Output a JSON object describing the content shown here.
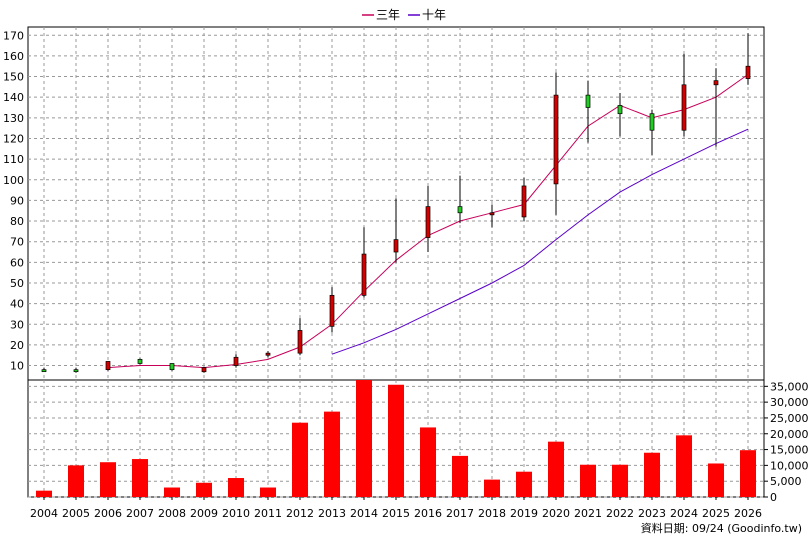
{
  "chart_data": {
    "type": "candlestick+bar",
    "legend": [
      {
        "label": "三年",
        "color": "#c8005a"
      },
      {
        "label": "十年",
        "color": "#5a00c8"
      }
    ],
    "years": [
      "2004",
      "2005",
      "2006",
      "2007",
      "2008",
      "2009",
      "2010",
      "2011",
      "2012",
      "2013",
      "2014",
      "2015",
      "2016",
      "2017",
      "2018",
      "2019",
      "2020",
      "2021",
      "2022",
      "2023",
      "2024",
      "2025",
      "2026"
    ],
    "price": {
      "ylim": [
        3,
        174
      ],
      "ticks": [
        10,
        20,
        30,
        40,
        50,
        60,
        70,
        80,
        90,
        100,
        110,
        120,
        130,
        140,
        150,
        160,
        170
      ],
      "candles": [
        {
          "open": 8,
          "close": 7.5,
          "high": 9,
          "low": 7,
          "color": "green"
        },
        {
          "open": 8,
          "close": 7.5,
          "high": 9,
          "low": 6.5,
          "color": "green"
        },
        {
          "open": 8,
          "close": 12,
          "high": 12,
          "low": 7.5,
          "color": "red"
        },
        {
          "open": 11,
          "close": 13,
          "high": 13.5,
          "low": 10.5,
          "color": "green"
        },
        {
          "open": 11,
          "close": 8,
          "high": 11,
          "low": 7.5,
          "color": "green"
        },
        {
          "open": 7,
          "close": 9,
          "high": 9.5,
          "low": 6.5,
          "color": "red"
        },
        {
          "open": 10,
          "close": 14,
          "high": 15.5,
          "low": 9,
          "color": "red"
        },
        {
          "open": 15,
          "close": 16,
          "high": 17,
          "low": 14,
          "color": "red"
        },
        {
          "open": 16,
          "close": 27,
          "high": 33,
          "low": 15,
          "color": "red"
        },
        {
          "open": 29,
          "close": 44,
          "high": 48,
          "low": 26,
          "color": "red"
        },
        {
          "open": 44,
          "close": 64,
          "high": 77,
          "low": 43,
          "color": "red"
        },
        {
          "open": 65,
          "close": 71,
          "high": 91,
          "low": 60,
          "color": "red"
        },
        {
          "open": 72,
          "close": 87,
          "high": 97,
          "low": 65,
          "color": "red"
        },
        {
          "open": 87,
          "close": 84,
          "high": 102,
          "low": 79,
          "color": "green"
        },
        {
          "open": 83,
          "close": 84,
          "high": 88,
          "low": 77,
          "color": "red"
        },
        {
          "open": 82,
          "close": 97,
          "high": 101,
          "low": 80,
          "color": "red"
        },
        {
          "open": 98,
          "close": 141,
          "high": 152,
          "low": 83,
          "color": "red"
        },
        {
          "open": 141,
          "close": 135,
          "high": 148,
          "low": 118,
          "color": "green"
        },
        {
          "open": 136,
          "close": 132,
          "high": 142,
          "low": 121,
          "color": "green"
        },
        {
          "open": 132,
          "close": 124,
          "high": 134,
          "low": 112,
          "color": "green"
        },
        {
          "open": 124,
          "close": 146,
          "high": 161,
          "low": 121,
          "color": "red"
        },
        {
          "open": 146,
          "close": 148,
          "high": 154,
          "low": 116,
          "color": "red"
        },
        {
          "open": 149,
          "close": 155,
          "high": 171,
          "low": 146,
          "color": "red"
        }
      ],
      "ma3": [
        null,
        null,
        9,
        10,
        10,
        9,
        10.5,
        13,
        19,
        30,
        46,
        61,
        73,
        80,
        84,
        88,
        107,
        126,
        136,
        130,
        134,
        140,
        151
      ],
      "ma10": [
        null,
        null,
        null,
        null,
        null,
        null,
        null,
        null,
        null,
        15.5,
        21,
        27.5,
        35,
        42.5,
        50,
        58.5,
        71,
        83,
        94,
        102.5,
        110,
        117.5,
        124.5
      ]
    },
    "volume": {
      "ylim": [
        0,
        37000
      ],
      "ticks": [
        0,
        5000,
        10000,
        15000,
        20000,
        25000,
        30000,
        35000
      ],
      "tick_labels": [
        "0",
        "5,000",
        "10,000",
        "15,000",
        "20,000",
        "25,000",
        "30,000",
        "35,000"
      ],
      "values": [
        2000,
        10000,
        11000,
        12000,
        3000,
        4500,
        6000,
        3000,
        23500,
        27000,
        37000,
        35500,
        22000,
        13000,
        5500,
        8000,
        17500,
        10200,
        10200,
        14000,
        19500,
        10600,
        14800
      ]
    },
    "footer": "資料日期: 09/24  (Goodinfo.tw)"
  }
}
